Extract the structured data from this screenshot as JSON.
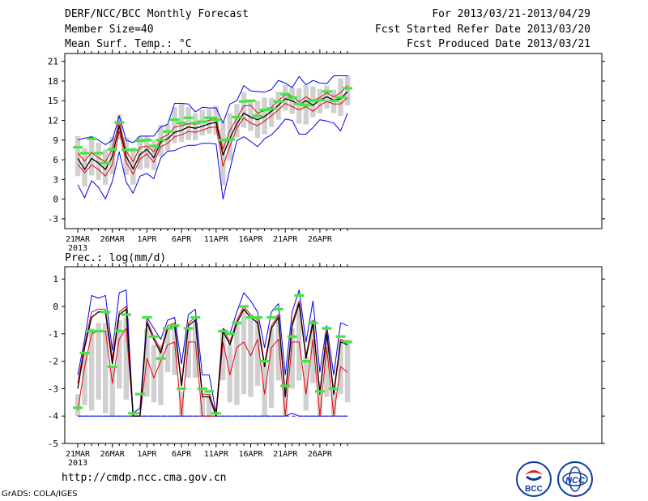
{
  "header": {
    "title": "DERF/NCC/BCC Monthly Forecast",
    "member_size": "Member Size=40",
    "variable": "Mean Surf. Temp.: °C",
    "period": "For 2013/03/21-2013/04/29",
    "refer_date": "Fcst Started Refer Date 2013/03/20",
    "produced_date": "Fcst Produced Date 2013/03/21"
  },
  "footer": {
    "url": "http://cmdp.ncc.cma.gov.cn",
    "grads": "GrADS: COLA/IGES",
    "logo_left": "BCC",
    "logo_right": "NCC"
  },
  "colors": {
    "mean": "#000000",
    "red": "#e8000b",
    "blue": "#0000ee",
    "green": "#3ee83e",
    "box": "#d0d0d0",
    "dash": "#2a2ad0"
  },
  "chart_data": [
    {
      "type": "line",
      "title": "Mean Surf. Temp.: °C",
      "x_ticks": [
        "21MAR",
        "26MAR",
        "1APR",
        "6APR",
        "11APR",
        "16APR",
        "21APR",
        "26APR"
      ],
      "x_year": "2013",
      "yticks": [
        -3,
        0,
        3,
        6,
        9,
        12,
        15,
        18,
        21
      ],
      "ylim": [
        -4.5,
        22.2
      ],
      "series": [
        {
          "name": "mean",
          "values": [
            6.2,
            4.5,
            6.2,
            5.5,
            4.5,
            6.5,
            11.2,
            6.5,
            4.6,
            6.8,
            7.6,
            6.3,
            8.7,
            9.2,
            10.2,
            10.5,
            11.0,
            10.8,
            11.1,
            11.5,
            11.7,
            6.7,
            9.3,
            11.5,
            13.1,
            12.5,
            12.1,
            12.6,
            13.4,
            14.3,
            15.3,
            15.0,
            14.4,
            15.0,
            14.3,
            15.1,
            15.6,
            15.1,
            15.3,
            16.4
          ]
        },
        {
          "name": "upper",
          "values": [
            7.0,
            5.8,
            7.1,
            6.3,
            5.7,
            7.7,
            11.9,
            7.3,
            5.7,
            7.9,
            8.1,
            7.2,
            9.3,
            9.8,
            11.0,
            11.2,
            11.5,
            11.4,
            11.8,
            12.0,
            12.4,
            7.6,
            10.5,
            12.3,
            14.2,
            14.3,
            13.1,
            13.5,
            14.0,
            15.0,
            15.9,
            15.7,
            14.8,
            15.6,
            15.0,
            15.5,
            16.2,
            15.6,
            16.2,
            17.3
          ]
        },
        {
          "name": "lower",
          "values": [
            5.3,
            4.0,
            5.2,
            4.5,
            3.5,
            5.3,
            10.4,
            5.6,
            3.8,
            6.1,
            6.9,
            5.6,
            8.0,
            8.5,
            9.5,
            9.8,
            10.3,
            10.2,
            10.5,
            10.9,
            11.0,
            5.0,
            8.1,
            10.8,
            12.4,
            11.6,
            11.2,
            11.9,
            12.7,
            13.6,
            14.6,
            14.1,
            13.6,
            14.1,
            13.4,
            14.3,
            14.9,
            14.5,
            14.5,
            15.5
          ]
        },
        {
          "name": "max",
          "values": [
            9.0,
            9.3,
            9.5,
            9.0,
            8.3,
            9.0,
            12.7,
            9.0,
            8.6,
            9.6,
            9.6,
            9.6,
            11.0,
            11.4,
            14.6,
            14.6,
            14.5,
            13.3,
            14.0,
            13.9,
            13.9,
            11.6,
            14.5,
            15.0,
            17.3,
            16.5,
            16.4,
            16.3,
            16.7,
            18.1,
            17.7,
            17.0,
            18.7,
            17.4,
            18.1,
            17.7,
            17.6,
            18.8,
            18.8,
            18.8
          ]
        },
        {
          "name": "min",
          "values": [
            2.2,
            0.2,
            2.8,
            1.8,
            0.0,
            2.7,
            7.2,
            2.6,
            0.9,
            3.5,
            3.9,
            3.1,
            6.3,
            7.3,
            7.4,
            7.9,
            8.2,
            8.2,
            8.5,
            8.5,
            8.4,
            0.0,
            4.6,
            8.9,
            9.5,
            8.8,
            8.0,
            9.2,
            9.8,
            10.9,
            12.2,
            12.0,
            9.9,
            9.9,
            10.9,
            12.1,
            11.9,
            11.6,
            10.4,
            13.1
          ]
        },
        {
          "name": "obs",
          "values": [
            7.9,
            7.0,
            9.2,
            7.0,
            5.5,
            7.6,
            11.7,
            7.5,
            7.5,
            8.9,
            9.0,
            8.1,
            9.0,
            10.3,
            12.1,
            11.6,
            12.4,
            11.6,
            11.8,
            12.4,
            12.1,
            9.0,
            9.1,
            12.5,
            14.9,
            15.0,
            12.7,
            13.6,
            13.8,
            14.9,
            16.0,
            15.5,
            14.5,
            14.3,
            15.0,
            15.1,
            16.4,
            15.0,
            15.5,
            16.9
          ]
        },
        {
          "name": "box_hi",
          "values": [
            9.6,
            7.8,
            9.6,
            8.6,
            7.6,
            9.5,
            12.9,
            9.4,
            7.9,
            9.6,
            9.6,
            8.9,
            11.3,
            11.4,
            14.0,
            14.5,
            14.0,
            13.1,
            13.6,
            13.7,
            14.2,
            11.8,
            13.1,
            14.5,
            16.3,
            15.0,
            15.0,
            15.5,
            15.4,
            16.4,
            17.4,
            17.0,
            16.9,
            17.3,
            17.2,
            16.8,
            17.3,
            16.7,
            18.4,
            18.9
          ]
        },
        {
          "name": "box_lo",
          "values": [
            3.5,
            1.9,
            3.6,
            2.9,
            2.2,
            3.8,
            9.1,
            3.7,
            2.2,
            4.5,
            4.7,
            4.4,
            6.5,
            7.4,
            8.6,
            8.7,
            9.0,
            9.0,
            9.7,
            10.0,
            9.8,
            2.1,
            5.9,
            9.4,
            10.9,
            10.4,
            9.3,
            9.9,
            11.0,
            12.1,
            13.5,
            13.0,
            11.5,
            11.4,
            12.5,
            13.1,
            13.8,
            13.1,
            12.7,
            14.3
          ]
        }
      ]
    },
    {
      "type": "line",
      "title": "Prec.: log(mm/d)",
      "x_ticks": [
        "21MAR",
        "26MAR",
        "1APR",
        "6APR",
        "11APR",
        "16APR",
        "21APR",
        "26APR"
      ],
      "x_year": "2013",
      "yticks": [
        -5,
        -4,
        -3,
        -2,
        -1,
        0,
        1
      ],
      "ylim": [
        -5.0,
        1.45
      ],
      "baseline": -4,
      "series": [
        {
          "name": "mean",
          "values": [
            -3.0,
            -1.5,
            -0.4,
            -0.2,
            -0.2,
            -2.1,
            -0.3,
            -0.1,
            -4.0,
            -4.0,
            -0.6,
            -1.2,
            -1.7,
            -0.8,
            -0.7,
            -2.9,
            -0.7,
            -0.5,
            -3.3,
            -3.3,
            -4.0,
            -0.9,
            -1.4,
            -0.6,
            -0.1,
            -0.4,
            -0.6,
            -2.2,
            -0.8,
            -0.4,
            -3.3,
            -0.7,
            0.1,
            -1.9,
            -0.6,
            -3.2,
            -1.0,
            -3.2,
            -1.3,
            -1.4
          ]
        },
        {
          "name": "upper",
          "values": [
            -2.8,
            -1.4,
            -0.2,
            -0.1,
            -0.1,
            -1.9,
            -0.2,
            0.0,
            -3.9,
            -3.9,
            -0.5,
            -1.1,
            -1.6,
            -0.7,
            -0.6,
            -2.8,
            -0.6,
            -0.4,
            -3.2,
            -3.2,
            -3.9,
            -0.8,
            -1.3,
            -0.5,
            0.0,
            -0.3,
            -0.5,
            -2.1,
            -0.7,
            -0.3,
            -3.2,
            -0.6,
            0.2,
            -1.8,
            -0.5,
            -3.1,
            -0.9,
            -3.1,
            -1.2,
            -1.3
          ]
        },
        {
          "name": "lower",
          "values": [
            -3.8,
            -2.2,
            -1.0,
            -0.9,
            -0.9,
            -2.8,
            -1.2,
            -0.8,
            -4.0,
            -4.0,
            -1.9,
            -2.6,
            -2.0,
            -1.4,
            -1.3,
            -4.0,
            -1.3,
            -1.3,
            -4.0,
            -4.0,
            -4.0,
            -1.3,
            -2.5,
            -1.5,
            -1.3,
            -1.8,
            -1.2,
            -3.2,
            -1.5,
            -1.2,
            -4.0,
            -1.3,
            -1.3,
            -3.2,
            -1.2,
            -4.0,
            -1.5,
            -4.0,
            -2.2,
            -2.4
          ]
        },
        {
          "name": "max",
          "values": [
            -2.5,
            -1.2,
            0.4,
            0.3,
            0.4,
            -1.6,
            0.5,
            0.6,
            -3.9,
            -3.7,
            -0.4,
            -0.8,
            -1.2,
            -0.5,
            -0.4,
            -2.1,
            -0.3,
            -0.1,
            -2.5,
            -2.5,
            -3.9,
            -0.8,
            -1.0,
            -0.2,
            0.5,
            0.2,
            -0.2,
            -1.5,
            -0.2,
            0.1,
            -2.5,
            -0.2,
            0.6,
            -1.3,
            0.2,
            -2.4,
            -0.7,
            -2.5,
            -0.6,
            -0.7
          ]
        },
        {
          "name": "min",
          "values": [
            -4.0,
            -4.0,
            -4.0,
            -4.0,
            -4.0,
            -4.0,
            -4.0,
            -4.0,
            -4.0,
            -4.0,
            -4.0,
            -4.0,
            -4.0,
            -4.0,
            -4.0,
            -4.0,
            -4.0,
            -4.0,
            -4.0,
            -4.0,
            -4.0,
            -4.0,
            -4.0,
            -4.0,
            -4.0,
            -4.0,
            -4.0,
            -4.0,
            -4.0,
            -4.0,
            -4.0,
            -3.9,
            -4.0,
            -4.0,
            -4.0,
            -4.0,
            -4.0,
            -4.0,
            -4.0,
            -4.0
          ]
        },
        {
          "name": "obs",
          "values": [
            -3.7,
            -1.7,
            -0.9,
            -0.9,
            -0.2,
            -2.2,
            -0.9,
            -0.3,
            -3.9,
            -3.2,
            -0.4,
            -1.1,
            -1.9,
            -0.8,
            -0.7,
            -3.0,
            -0.8,
            -0.4,
            -3.0,
            -3.1,
            -3.9,
            -0.9,
            -1.0,
            -0.6,
            0.0,
            -0.4,
            -0.4,
            -2.0,
            -0.4,
            -0.1,
            -2.9,
            -1.1,
            0.4,
            -2.0,
            -0.6,
            -3.1,
            -0.8,
            -3.0,
            -1.1,
            -1.3
          ]
        },
        {
          "name": "box_hi",
          "values": [
            -3.2,
            -1.7,
            -0.8,
            -0.6,
            -0.6,
            -2.2,
            -0.5,
            -0.4,
            -4.0,
            -4.0,
            -0.8,
            -1.4,
            -1.4,
            -0.8,
            -0.7,
            -3.1,
            -0.8,
            -0.6,
            -3.3,
            -3.2,
            -4.0,
            -0.9,
            -1.4,
            -0.6,
            -0.1,
            -0.4,
            -0.5,
            -2.1,
            -0.8,
            -0.3,
            -3.1,
            -0.8,
            0.1,
            -1.8,
            -0.5,
            -3.2,
            -1.0,
            -3.1,
            -1.2,
            -1.2
          ]
        },
        {
          "name": "box_lo",
          "values": [
            -4.0,
            -3.6,
            -3.8,
            -3.4,
            -3.9,
            -4.0,
            -3.0,
            -3.4,
            -4.0,
            -4.0,
            -3.3,
            -3.5,
            -3.6,
            -2.4,
            -2.5,
            -4.0,
            -2.6,
            -2.6,
            -4.0,
            -4.0,
            -4.0,
            -2.7,
            -3.5,
            -3.6,
            -3.2,
            -3.3,
            -2.9,
            -4.0,
            -3.7,
            -2.7,
            -4.0,
            -3.0,
            -2.7,
            -3.8,
            -2.8,
            -4.0,
            -3.3,
            -4.0,
            -3.2,
            -3.5
          ]
        }
      ]
    }
  ]
}
